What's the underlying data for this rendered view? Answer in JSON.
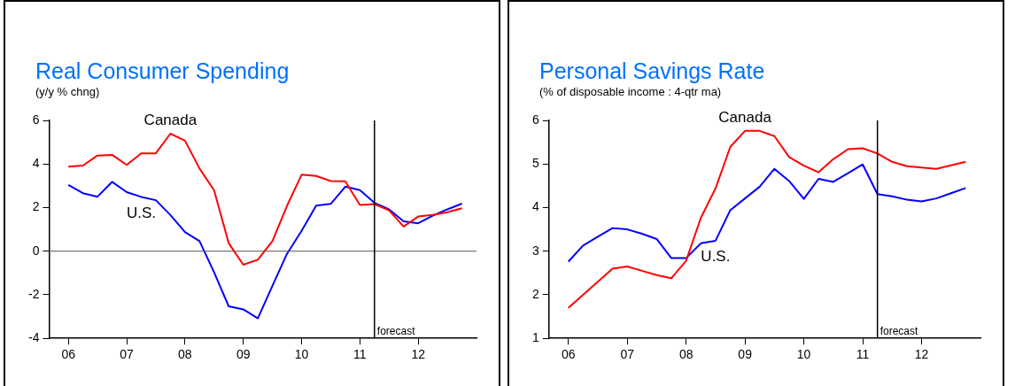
{
  "chart_data": [
    {
      "type": "line",
      "title": "Real Consumer Spending",
      "subtitle": "(y/y % chng)",
      "x": [
        2006,
        2006.25,
        2006.5,
        2006.75,
        2007,
        2007.25,
        2007.5,
        2007.75,
        2008,
        2008.25,
        2008.5,
        2008.75,
        2009,
        2009.25,
        2009.5,
        2009.75,
        2010,
        2010.25,
        2010.5,
        2010.75,
        2011,
        2011.25,
        2011.5,
        2011.75,
        2012,
        2012.25,
        2012.5,
        2012.75
      ],
      "series": [
        {
          "name": "Canada",
          "color": "#ff0000",
          "values": [
            3.88,
            3.93,
            4.39,
            4.42,
            3.96,
            4.49,
            4.49,
            5.39,
            5.07,
            3.79,
            2.79,
            0.37,
            -0.62,
            -0.39,
            0.46,
            2.08,
            3.51,
            3.45,
            3.22,
            3.21,
            2.12,
            2.16,
            1.87,
            1.13,
            1.59,
            1.66,
            1.79,
            1.97
          ]
        },
        {
          "name": "U.S.",
          "color": "#0000ff",
          "values": [
            3.04,
            2.66,
            2.5,
            3.18,
            2.71,
            2.49,
            2.34,
            1.66,
            0.88,
            0.46,
            -0.97,
            -2.53,
            -2.67,
            -3.08,
            -1.59,
            -0.12,
            0.93,
            2.09,
            2.17,
            2.96,
            2.8,
            2.22,
            1.92,
            1.37,
            1.28,
            1.63,
            1.92,
            2.18
          ]
        }
      ],
      "xlim": [
        2005.67,
        2013
      ],
      "xticks": [
        {
          "value": 2006,
          "label": "06"
        },
        {
          "value": 2007,
          "label": "07"
        },
        {
          "value": 2008,
          "label": "08"
        },
        {
          "value": 2009,
          "label": "09"
        },
        {
          "value": 2010,
          "label": "10"
        },
        {
          "value": 2011,
          "label": "11"
        },
        {
          "value": 2012,
          "label": "12"
        }
      ],
      "ylim": [
        -4,
        6
      ],
      "yticks": [
        -4,
        -2,
        0,
        2,
        4,
        6
      ],
      "ref_lines": [
        {
          "axis": "y",
          "value": 0,
          "color": "#555555"
        },
        {
          "axis": "x",
          "value": 2011.25,
          "label": "forecast",
          "color": "#000000"
        }
      ],
      "grid": false,
      "legend": false,
      "marker": "none",
      "line_style": "solid"
    },
    {
      "type": "line",
      "title": "Personal Savings Rate",
      "subtitle": "(% of disposable income : 4-qtr ma)",
      "x": [
        2006,
        2006.25,
        2006.5,
        2006.75,
        2007,
        2007.25,
        2007.5,
        2007.75,
        2008,
        2008.25,
        2008.5,
        2008.75,
        2009,
        2009.25,
        2009.5,
        2009.75,
        2010,
        2010.25,
        2010.5,
        2010.75,
        2011,
        2011.25,
        2011.5,
        2011.75,
        2012,
        2012.25,
        2012.5,
        2012.75
      ],
      "series": [
        {
          "name": "Canada",
          "color": "#ff0000",
          "values": [
            1.7,
            2.0,
            2.3,
            2.6,
            2.65,
            2.55,
            2.45,
            2.38,
            2.78,
            3.76,
            4.44,
            5.39,
            5.76,
            5.76,
            5.64,
            5.16,
            4.96,
            4.81,
            5.11,
            5.34,
            5.36,
            5.24,
            5.05,
            4.95,
            4.92,
            4.89,
            4.97,
            5.05
          ]
        },
        {
          "name": "U.S.",
          "color": "#0000ff",
          "values": [
            2.76,
            3.13,
            3.33,
            3.53,
            3.5,
            3.4,
            3.28,
            2.84,
            2.84,
            3.18,
            3.24,
            3.94,
            4.21,
            4.48,
            4.89,
            4.61,
            4.2,
            4.66,
            4.59,
            4.79,
            4.99,
            4.31,
            4.26,
            4.18,
            4.14,
            4.21,
            4.33,
            4.45
          ]
        }
      ],
      "xlim": [
        2005.67,
        2013
      ],
      "xticks": [
        {
          "value": 2006,
          "label": "06"
        },
        {
          "value": 2007,
          "label": "07"
        },
        {
          "value": 2008,
          "label": "08"
        },
        {
          "value": 2009,
          "label": "09"
        },
        {
          "value": 2010,
          "label": "10"
        },
        {
          "value": 2011,
          "label": "11"
        },
        {
          "value": 2012,
          "label": "12"
        }
      ],
      "ylim": [
        1,
        6
      ],
      "yticks": [
        1,
        2,
        3,
        4,
        5,
        6
      ],
      "ref_lines": [
        {
          "axis": "x",
          "value": 2011.25,
          "label": "forecast",
          "color": "#000000"
        }
      ],
      "grid": false,
      "legend": false,
      "marker": "none",
      "line_style": "solid"
    }
  ]
}
